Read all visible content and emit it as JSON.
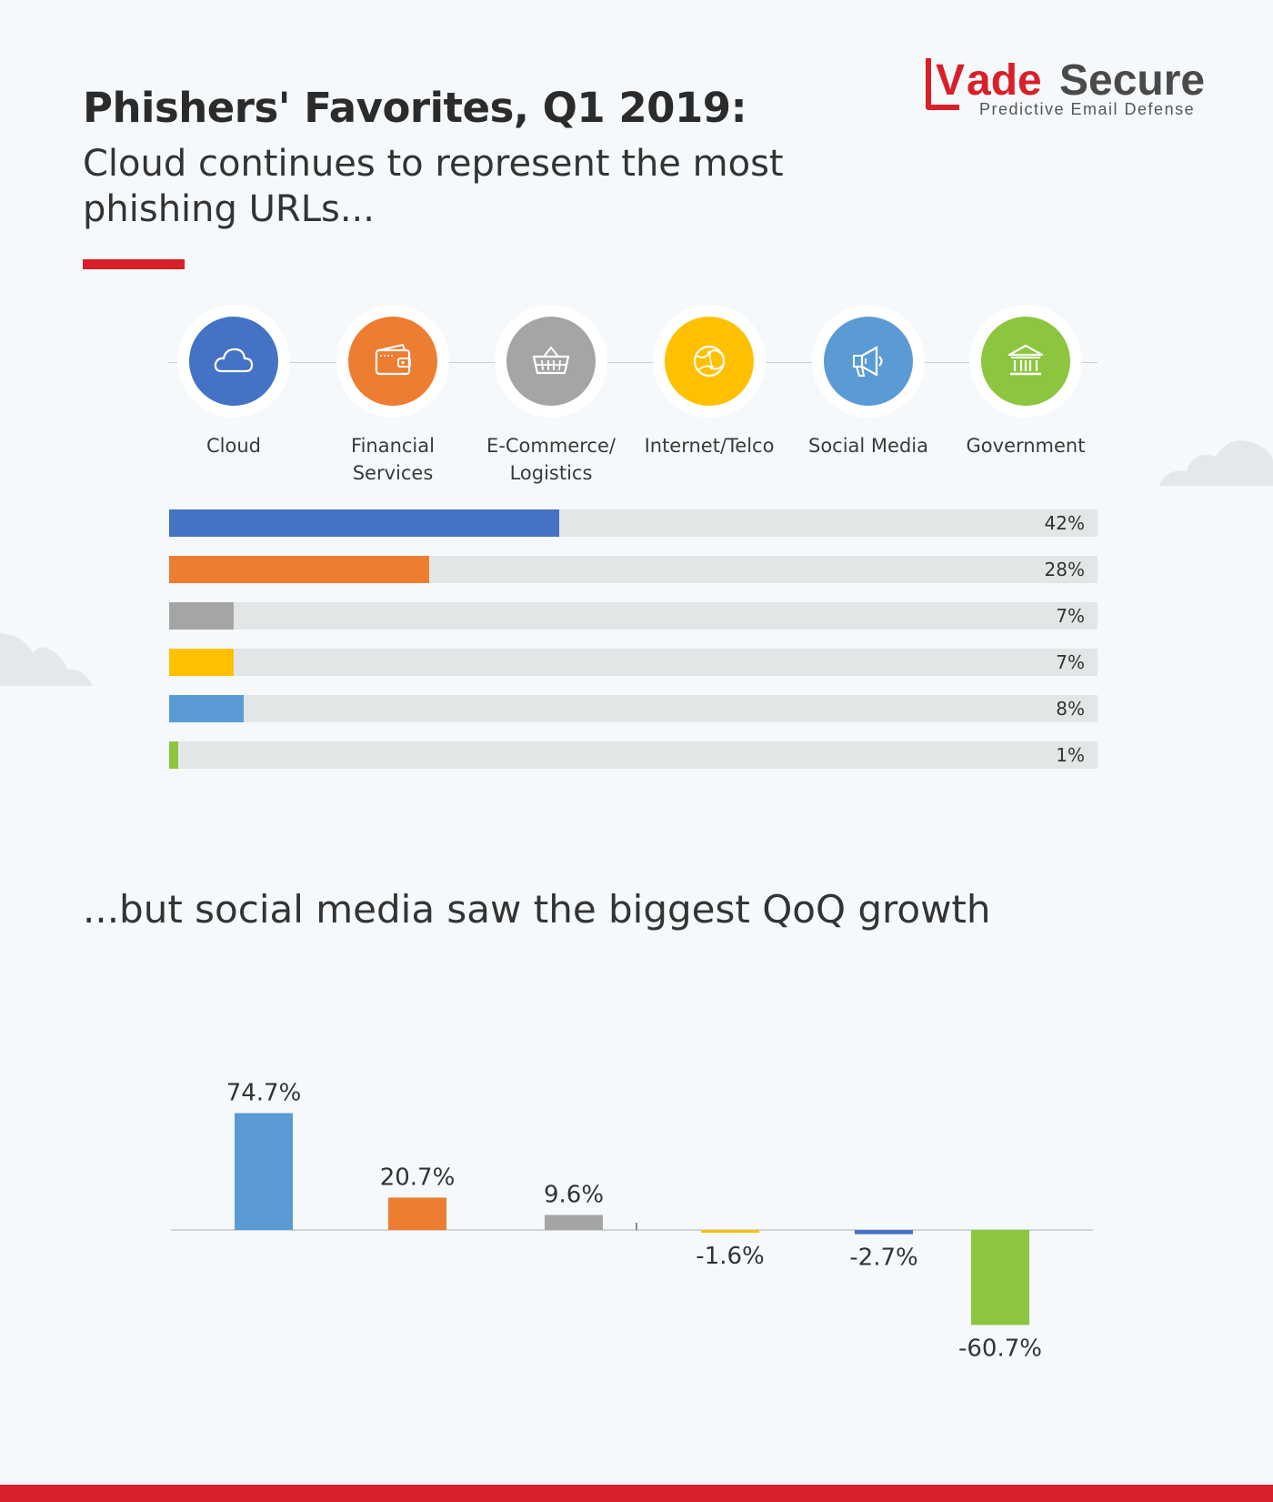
{
  "header": {
    "title": "Phishers' Favorites, Q1 2019:",
    "subtitle": "Cloud continues to represent the most phishing URLs..."
  },
  "logo": {
    "brand_v": "V",
    "brand_ade": "ade",
    "brand_secure": "Secure",
    "tagline": "Predictive Email Defense"
  },
  "categories": [
    {
      "label": "Cloud",
      "icon": "cloud-icon",
      "color": "#4472c4"
    },
    {
      "label": "Financial Services",
      "icon": "wallet-icon",
      "color": "#ed7d31"
    },
    {
      "label": "E-Commerce/ Logistics",
      "icon": "basket-icon",
      "color": "#a5a5a5"
    },
    {
      "label": "Internet/Telco",
      "icon": "globe-icon",
      "color": "#ffc000"
    },
    {
      "label": "Social Media",
      "icon": "megaphone-icon",
      "color": "#5b9bd5"
    },
    {
      "label": "Government",
      "icon": "bank-icon",
      "color": "#8cc63f"
    }
  ],
  "growth_section": {
    "heading": "...but social media saw the biggest QoQ growth"
  },
  "chart_data": [
    {
      "type": "bar",
      "orientation": "horizontal",
      "categories": [
        "Cloud",
        "Financial Services",
        "E-Commerce/ Logistics",
        "Internet/Telco",
        "Social Media",
        "Government"
      ],
      "values": [
        42,
        28,
        7,
        7,
        8,
        1
      ],
      "value_labels": [
        "42%",
        "28%",
        "7%",
        "7%",
        "8%",
        "1%"
      ],
      "xlim": [
        0,
        100
      ],
      "colors": [
        "#4472c4",
        "#ed7d31",
        "#a5a5a5",
        "#ffc000",
        "#5b9bd5",
        "#8cc63f"
      ],
      "title": "Cloud continues to represent the most phishing URLs...",
      "grid": false
    },
    {
      "type": "bar",
      "orientation": "vertical",
      "categories": [
        "Social Media",
        "Financial Services",
        "E-Commerce/ Logistics",
        "Internet/Telco",
        "Cloud",
        "Government"
      ],
      "values": [
        74.7,
        20.7,
        9.6,
        -1.6,
        -2.7,
        -60.7
      ],
      "value_labels": [
        "74.7%",
        "20.7%",
        "9.6%",
        "-1.6%",
        "-2.7%",
        "-60.7%"
      ],
      "colors": [
        "#5b9bd5",
        "#ed7d31",
        "#a5a5a5",
        "#ffc000",
        "#4472c4",
        "#8cc63f"
      ],
      "title": "...but social media saw the biggest QoQ growth",
      "grid": false
    }
  ]
}
